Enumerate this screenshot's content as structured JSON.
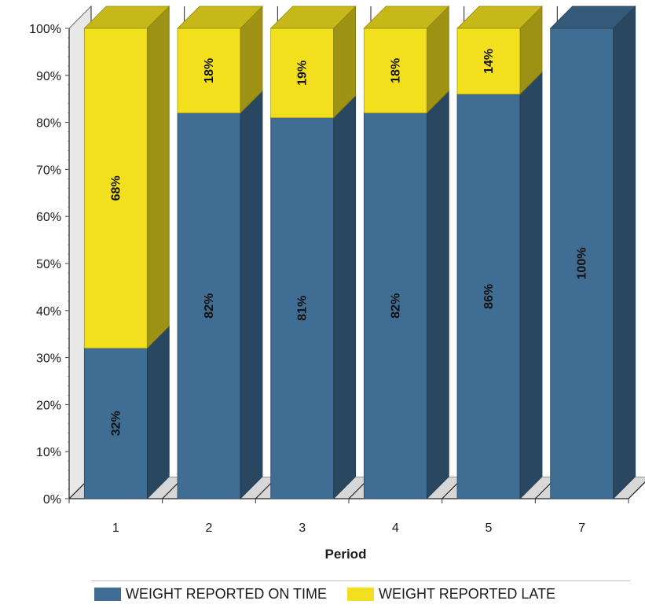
{
  "chart_data": {
    "type": "bar",
    "stacked": true,
    "percent_stacked": true,
    "three_d": true,
    "categories": [
      "1",
      "2",
      "3",
      "4",
      "5",
      "7"
    ],
    "series": [
      {
        "name": "WEIGHT REPORTED ON TIME",
        "color": "#3f6d93",
        "values": [
          32,
          82,
          81,
          82,
          86,
          100
        ],
        "labels": [
          "32%",
          "82%",
          "81%",
          "82%",
          "86%",
          "100%"
        ]
      },
      {
        "name": "WEIGHT REPORTED LATE",
        "color": "#f2e01e",
        "values": [
          68,
          18,
          19,
          18,
          14,
          0
        ],
        "labels": [
          "68%",
          "18%",
          "19%",
          "18%",
          "14%",
          ""
        ]
      }
    ],
    "xlabel": "Period",
    "ylabel": "",
    "ylim": [
      0,
      100
    ],
    "yticks": [
      "0%",
      "10%",
      "20%",
      "30%",
      "40%",
      "50%",
      "60%",
      "70%",
      "80%",
      "90%",
      "100%"
    ],
    "grid": true,
    "legend_position": "bottom"
  }
}
